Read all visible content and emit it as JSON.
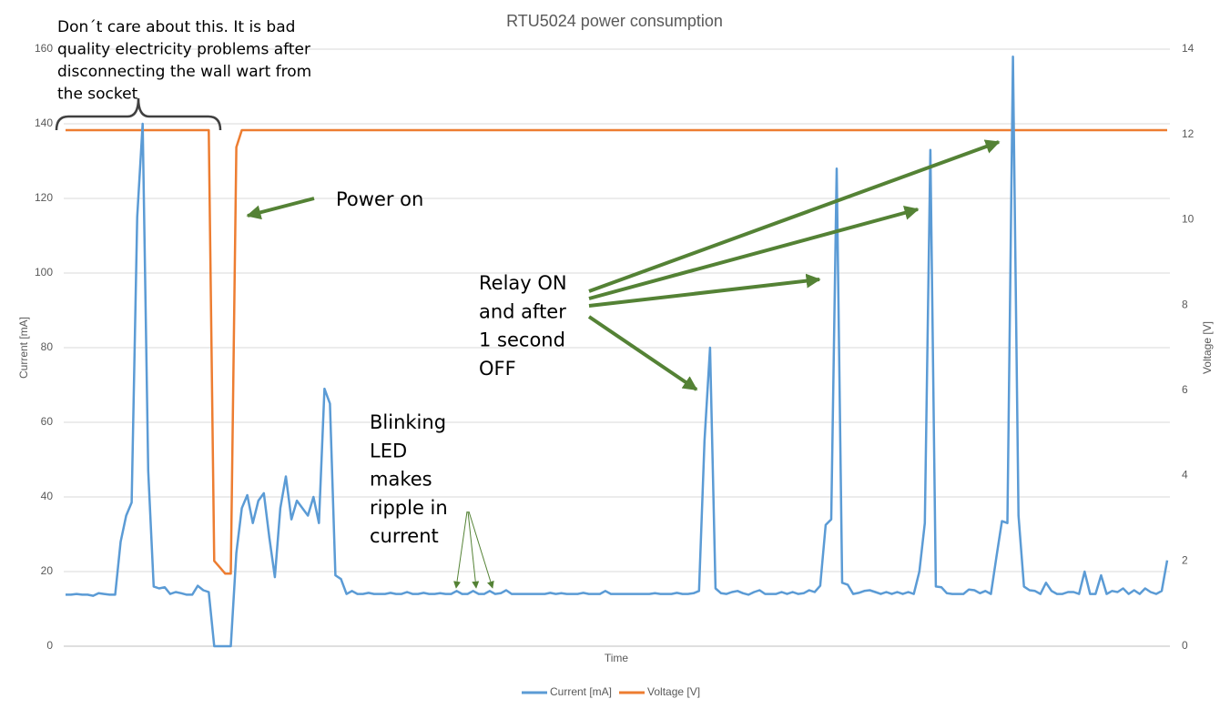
{
  "chart_data": {
    "type": "line",
    "title": "RTU5024 power consumption",
    "xlabel": "Time",
    "ylabel": "Current [mA]",
    "y2label": "Voltage [V]",
    "ylim": [
      0,
      160
    ],
    "yticks": [
      0,
      20,
      40,
      60,
      80,
      100,
      120,
      140,
      160
    ],
    "y2lim": [
      0,
      14
    ],
    "y2ticks": [
      0,
      2,
      4,
      6,
      8,
      10,
      12,
      14
    ],
    "grid": true,
    "legend": "bottom",
    "series": [
      {
        "name": "Current [mA]",
        "color": "#5b9bd5",
        "values": [
          13.8,
          13.8,
          14,
          13.8,
          13.8,
          13.5,
          14.2,
          14,
          13.8,
          13.8,
          28,
          35,
          38.5,
          115,
          140,
          47,
          16,
          15.5,
          15.8,
          14,
          14.5,
          14.2,
          13.8,
          13.8,
          16.2,
          15,
          14.5,
          0,
          0,
          0,
          0,
          25,
          37,
          40.5,
          33,
          39,
          41,
          29,
          18.5,
          37,
          45.5,
          34,
          39,
          37,
          35,
          40,
          33,
          69,
          65,
          19,
          18,
          14,
          14.8,
          14,
          14,
          14.3,
          14,
          14,
          14,
          14.3,
          14,
          14,
          14.5,
          14,
          14,
          14.3,
          14,
          14,
          14.2,
          14,
          14,
          14.8,
          14,
          14,
          14.8,
          14,
          14,
          14.8,
          14,
          14.2,
          15,
          14,
          14,
          14,
          14,
          14,
          14,
          14,
          14.3,
          14,
          14.2,
          14,
          14,
          14,
          14.3,
          14,
          14,
          14,
          14.8,
          14,
          14,
          14,
          14,
          14,
          14,
          14,
          14,
          14.2,
          14,
          14,
          14,
          14.3,
          14,
          14,
          14.2,
          14.8,
          55,
          80,
          15.5,
          14.2,
          14,
          14.5,
          14.8,
          14.2,
          13.8,
          14.5,
          15,
          14,
          14,
          14,
          14.5,
          14,
          14.5,
          14,
          14.2,
          15,
          14.5,
          16.2,
          32.5,
          34,
          128,
          17,
          16.5,
          14,
          14.3,
          14.8,
          15,
          14.5,
          14,
          14.5,
          14,
          14.5,
          14,
          14.5,
          14,
          20,
          33,
          133,
          16,
          15.8,
          14.2,
          14,
          14,
          14,
          15.2,
          15,
          14.2,
          14.8,
          14,
          24,
          33.5,
          33,
          158,
          35,
          16,
          15,
          14.8,
          14,
          17,
          14.8,
          14,
          14,
          14.5,
          14.5,
          14,
          20,
          14,
          14,
          19,
          14,
          14.8,
          14.5,
          15.5,
          14,
          15,
          14,
          15.5,
          14.5,
          14,
          14.8,
          23
        ]
      },
      {
        "name": "Voltage [V]",
        "color": "#ed7d31",
        "axis": "y2",
        "values": [
          12.1,
          12.1,
          12.1,
          12.1,
          12.1,
          12.1,
          12.1,
          12.1,
          12.1,
          12.1,
          12.1,
          12.1,
          12.1,
          12.1,
          12.1,
          12.1,
          12.1,
          12.1,
          12.1,
          12.1,
          12.1,
          12.1,
          12.1,
          12.1,
          12.1,
          12.1,
          12.1,
          2.0,
          1.85,
          1.7,
          1.7,
          11.7,
          12.1,
          12.1,
          12.1,
          12.1,
          12.1,
          12.1,
          12.1,
          12.1,
          12.1,
          12.1,
          12.1,
          12.1,
          12.1,
          12.1,
          12.1,
          12.1,
          12.1,
          12.1,
          12.1,
          12.1,
          12.1,
          12.1,
          12.1,
          12.1,
          12.1,
          12.1,
          12.1,
          12.1,
          12.1,
          12.1,
          12.1,
          12.1,
          12.1,
          12.1,
          12.1,
          12.1,
          12.1,
          12.1,
          12.1,
          12.1,
          12.1,
          12.1,
          12.1,
          12.1,
          12.1,
          12.1,
          12.1,
          12.1,
          12.1,
          12.1,
          12.1,
          12.1,
          12.1,
          12.1,
          12.1,
          12.1,
          12.1,
          12.1,
          12.1,
          12.1,
          12.1,
          12.1,
          12.1,
          12.1,
          12.1,
          12.1,
          12.1,
          12.1,
          12.1,
          12.1,
          12.1,
          12.1,
          12.1,
          12.1,
          12.1,
          12.1,
          12.1,
          12.1,
          12.1,
          12.1,
          12.1,
          12.1,
          12.1,
          12.1,
          12.1,
          12.1,
          12.1,
          12.1,
          12.1,
          12.1,
          12.1,
          12.1,
          12.1,
          12.1,
          12.1,
          12.1,
          12.1,
          12.1,
          12.1,
          12.1,
          12.1,
          12.1,
          12.1,
          12.1,
          12.1,
          12.1,
          12.1,
          12.1,
          12.1,
          12.1,
          12.1,
          12.1,
          12.1,
          12.1,
          12.1,
          12.1,
          12.1,
          12.1,
          12.1,
          12.1,
          12.1,
          12.1,
          12.1,
          12.1,
          12.1,
          12.1,
          12.1,
          12.1,
          12.1,
          12.1,
          12.1,
          12.1,
          12.1,
          12.1,
          12.1,
          12.1,
          12.1,
          12.1,
          12.1,
          12.1,
          12.1,
          12.1,
          12.1,
          12.1,
          12.1,
          12.1,
          12.1,
          12.1,
          12.1,
          12.1,
          12.1,
          12.1,
          12.1,
          12.1,
          12.1,
          12.1,
          12.1,
          12.1,
          12.1,
          12.1,
          12.1,
          12.1,
          12.1,
          12.1,
          12.1,
          12.1,
          12.1,
          12.1,
          12.1
        ]
      }
    ],
    "annotations": [
      {
        "lines": [
          "Don´t care about this. It is bad",
          "quality electricity problems after",
          "disconnecting the wall wart from",
          "the socket"
        ]
      },
      {
        "lines": [
          "Power on"
        ]
      },
      {
        "lines": [
          "Relay ON",
          "and after",
          "1 second",
          "OFF"
        ]
      },
      {
        "lines": [
          "Blinking",
          "LED",
          "makes",
          "ripple in",
          "current"
        ]
      }
    ]
  }
}
